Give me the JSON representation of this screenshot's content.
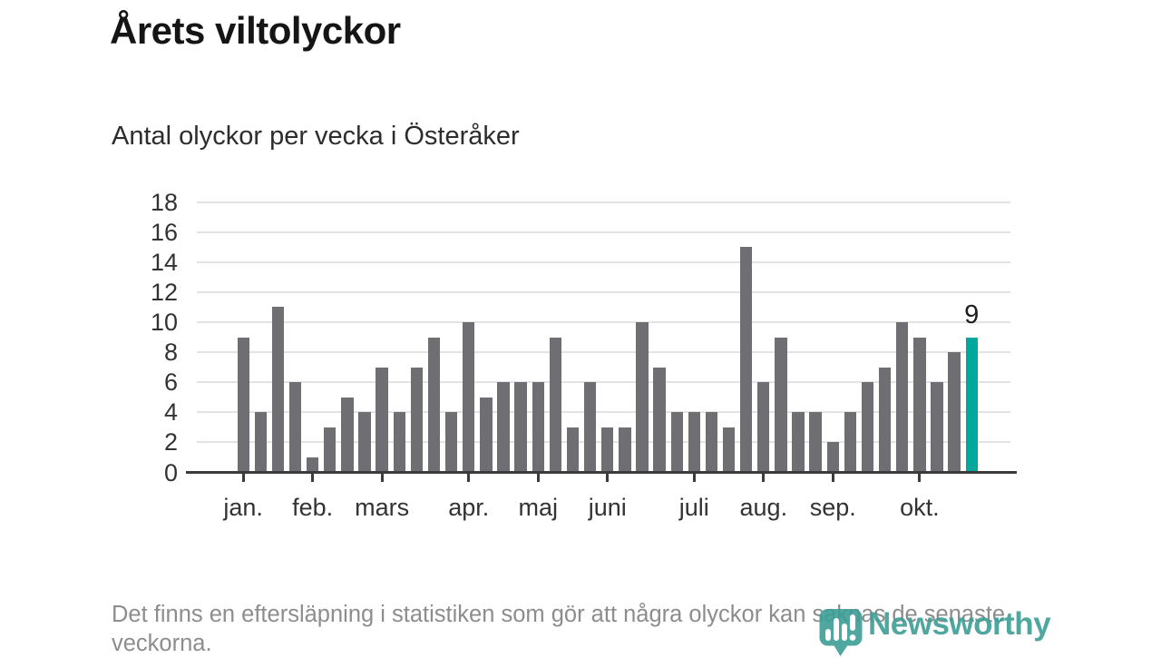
{
  "chart_data": {
    "type": "bar",
    "title": "Årets viltolyckor",
    "subtitle": "Antal olyckor per vecka i Österåker",
    "x_unit": "vecka",
    "values": [
      9,
      4,
      11,
      6,
      1,
      3,
      5,
      4,
      7,
      4,
      7,
      9,
      4,
      10,
      5,
      6,
      6,
      6,
      9,
      3,
      6,
      3,
      3,
      10,
      7,
      4,
      4,
      4,
      3,
      15,
      6,
      9,
      4,
      4,
      2,
      4,
      6,
      7,
      10,
      9,
      6,
      8,
      9
    ],
    "highlight_index": 42,
    "highlight_value_label": "9",
    "months": [
      {
        "label": "jan.",
        "week_index": 0
      },
      {
        "label": "feb.",
        "week_index": 4
      },
      {
        "label": "mars",
        "week_index": 8
      },
      {
        "label": "apr.",
        "week_index": 13
      },
      {
        "label": "maj",
        "week_index": 17
      },
      {
        "label": "juni",
        "week_index": 21
      },
      {
        "label": "juli",
        "week_index": 26
      },
      {
        "label": "aug.",
        "week_index": 30
      },
      {
        "label": "sep.",
        "week_index": 34
      },
      {
        "label": "okt.",
        "week_index": 39
      }
    ],
    "ylim": [
      0,
      18
    ],
    "yticks": [
      0,
      2,
      4,
      6,
      8,
      10,
      12,
      14,
      16,
      18
    ],
    "grid": true,
    "legend": "none",
    "colors": {
      "bar": "#6e6e73",
      "highlight": "#00a79c",
      "grid": "#e3e3e3",
      "axis": "#3b3b3b",
      "tick_label": "#333333"
    }
  },
  "footer": {
    "note": "Det finns en eftersläpning i statistiken som gör att några olyckor kan saknas de senaste veckorna."
  },
  "branding": {
    "name": "Newsworthy",
    "logo_color": "#3c9e96"
  }
}
